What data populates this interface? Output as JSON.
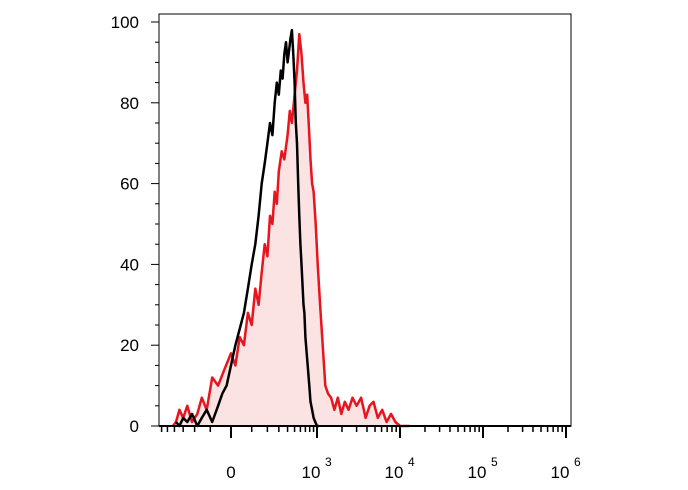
{
  "chart_data": {
    "type": "area",
    "x_scale": "biexponential",
    "x_tick_labels": [
      {
        "base": "0",
        "exp": "",
        "value": 0
      },
      {
        "base": "10",
        "exp": "3",
        "value": 1000
      },
      {
        "base": "10",
        "exp": "4",
        "value": 10000
      },
      {
        "base": "10",
        "exp": "5",
        "value": 100000
      },
      {
        "base": "10",
        "exp": "6",
        "value": 1000000
      }
    ],
    "y_tick_labels": [
      "0",
      "20",
      "40",
      "60",
      "80",
      "100"
    ],
    "ylim": [
      0,
      100
    ],
    "grid": false,
    "series": [
      {
        "color": "#e8141e",
        "fill": "#fbe3e3",
        "points": [
          [
            -420,
            0
          ],
          [
            -380,
            1
          ],
          [
            -340,
            4
          ],
          [
            -300,
            2
          ],
          [
            -260,
            5
          ],
          [
            -220,
            1
          ],
          [
            -180,
            3
          ],
          [
            -150,
            7
          ],
          [
            -120,
            4
          ],
          [
            -90,
            12
          ],
          [
            -60,
            10
          ],
          [
            -30,
            14
          ],
          [
            0,
            18
          ],
          [
            20,
            15
          ],
          [
            40,
            22
          ],
          [
            60,
            20
          ],
          [
            80,
            28
          ],
          [
            100,
            25
          ],
          [
            120,
            34
          ],
          [
            140,
            30
          ],
          [
            160,
            38
          ],
          [
            180,
            45
          ],
          [
            200,
            42
          ],
          [
            220,
            52
          ],
          [
            240,
            50
          ],
          [
            260,
            58
          ],
          [
            280,
            55
          ],
          [
            300,
            63
          ],
          [
            330,
            68
          ],
          [
            360,
            66
          ],
          [
            400,
            72
          ],
          [
            430,
            78
          ],
          [
            460,
            75
          ],
          [
            500,
            82
          ],
          [
            540,
            88
          ],
          [
            580,
            97
          ],
          [
            620,
            92
          ],
          [
            660,
            85
          ],
          [
            700,
            80
          ],
          [
            740,
            82
          ],
          [
            780,
            74
          ],
          [
            820,
            66
          ],
          [
            860,
            60
          ],
          [
            900,
            58
          ],
          [
            960,
            50
          ],
          [
            1020,
            40
          ],
          [
            1090,
            30
          ],
          [
            1170,
            20
          ],
          [
            1260,
            10
          ],
          [
            1360,
            8
          ],
          [
            1480,
            7
          ],
          [
            1620,
            4
          ],
          [
            1780,
            7
          ],
          [
            1960,
            3
          ],
          [
            2160,
            6
          ],
          [
            2400,
            4
          ],
          [
            2680,
            7
          ],
          [
            3000,
            5
          ],
          [
            3400,
            7
          ],
          [
            3850,
            2
          ],
          [
            4300,
            5
          ],
          [
            4800,
            6
          ],
          [
            5400,
            2
          ],
          [
            6100,
            4
          ],
          [
            6900,
            1
          ],
          [
            7800,
            3
          ],
          [
            8800,
            1
          ],
          [
            10000,
            0
          ],
          [
            11500,
            0
          ],
          [
            13000,
            0
          ]
        ]
      },
      {
        "color": "#000000",
        "fill": "none",
        "points": [
          [
            -380,
            1
          ],
          [
            -340,
            0
          ],
          [
            -300,
            2
          ],
          [
            -260,
            1
          ],
          [
            -220,
            3
          ],
          [
            -180,
            0
          ],
          [
            -150,
            2
          ],
          [
            -120,
            4
          ],
          [
            -90,
            1
          ],
          [
            -60,
            5
          ],
          [
            -40,
            8
          ],
          [
            -20,
            10
          ],
          [
            0,
            15
          ],
          [
            20,
            20
          ],
          [
            40,
            24
          ],
          [
            60,
            28
          ],
          [
            80,
            34
          ],
          [
            100,
            40
          ],
          [
            120,
            45
          ],
          [
            140,
            52
          ],
          [
            160,
            60
          ],
          [
            180,
            65
          ],
          [
            200,
            70
          ],
          [
            220,
            75
          ],
          [
            240,
            72
          ],
          [
            260,
            80
          ],
          [
            280,
            85
          ],
          [
            300,
            82
          ],
          [
            320,
            88
          ],
          [
            340,
            86
          ],
          [
            360,
            92
          ],
          [
            380,
            95
          ],
          [
            400,
            90
          ],
          [
            420,
            93
          ],
          [
            440,
            96
          ],
          [
            460,
            98
          ],
          [
            480,
            92
          ],
          [
            500,
            85
          ],
          [
            520,
            75
          ],
          [
            540,
            70
          ],
          [
            560,
            60
          ],
          [
            580,
            52
          ],
          [
            600,
            45
          ],
          [
            620,
            40
          ],
          [
            640,
            35
          ],
          [
            660,
            30
          ],
          [
            680,
            28
          ],
          [
            700,
            22
          ],
          [
            730,
            18
          ],
          [
            760,
            14
          ],
          [
            790,
            10
          ],
          [
            820,
            6
          ],
          [
            860,
            4
          ],
          [
            900,
            2
          ],
          [
            950,
            1
          ],
          [
            1000,
            0
          ],
          [
            1060,
            0
          ]
        ]
      }
    ]
  }
}
